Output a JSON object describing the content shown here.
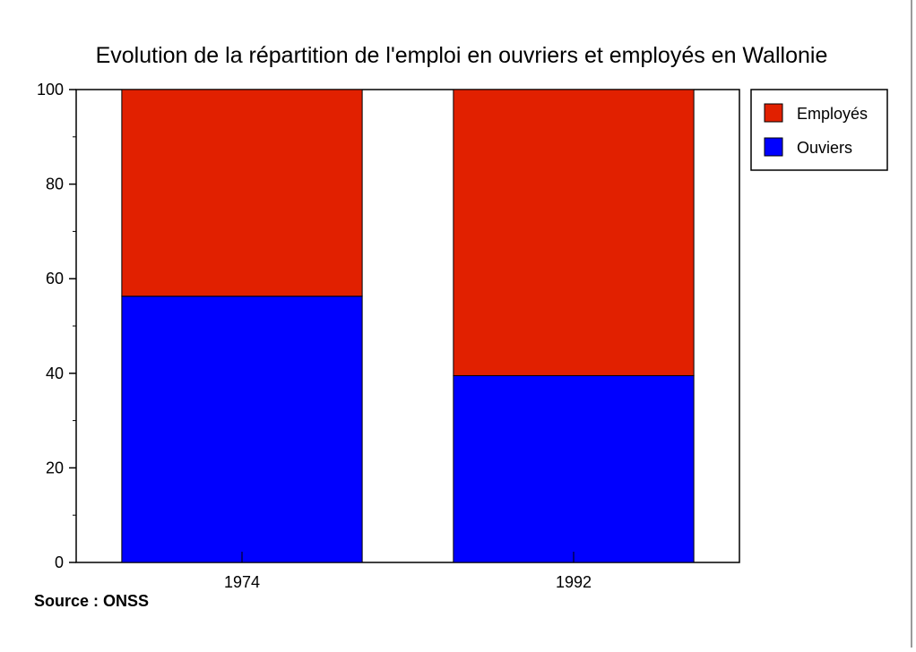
{
  "chart_data": {
    "type": "bar",
    "stacked": true,
    "title": "Evolution de la répartition de l'emploi en ouvriers et employés en Wallonie",
    "categories": [
      "1974",
      "1992"
    ],
    "series": [
      {
        "name": "Ouviers",
        "values": [
          56.3,
          39.5
        ],
        "color": "#0000ff"
      },
      {
        "name": "Employés",
        "values": [
          43.7,
          60.5
        ],
        "color": "#e12000"
      }
    ],
    "ylim": [
      0,
      100
    ],
    "yticks": [
      0,
      20,
      40,
      60,
      80,
      100
    ],
    "xlabel": "",
    "ylabel": "",
    "grid": false,
    "legend": "top-right"
  },
  "source_note": "Source : ONSS"
}
